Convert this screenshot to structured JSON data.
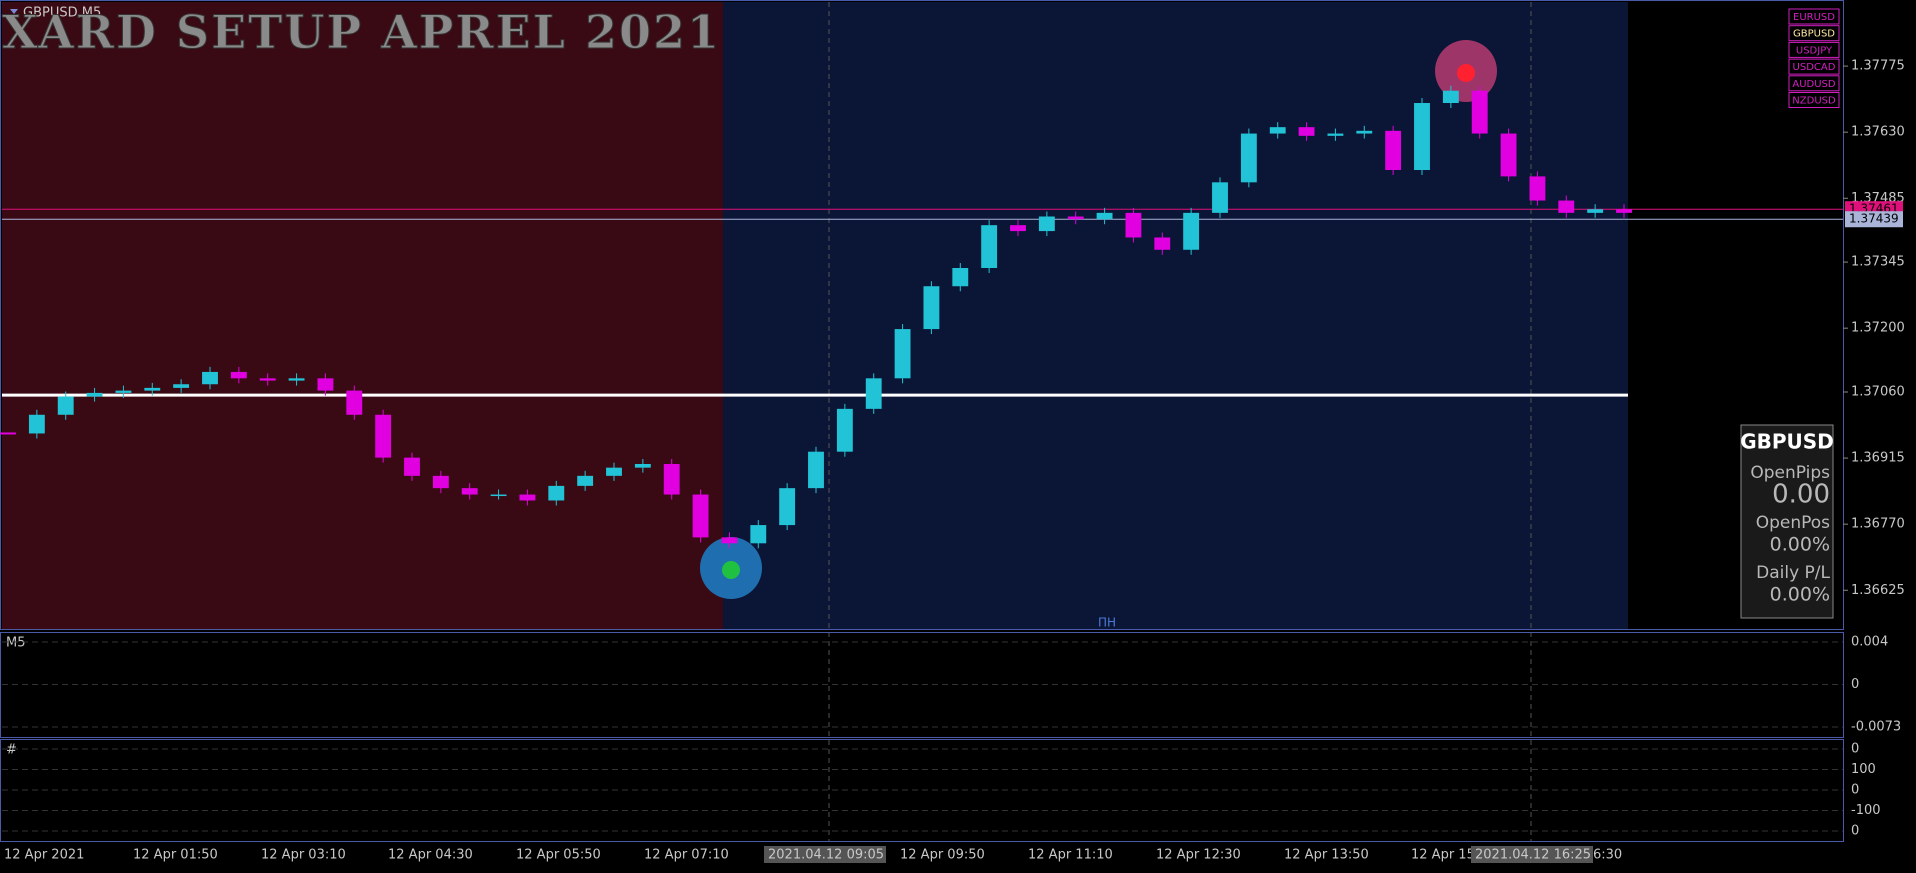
{
  "header": {
    "symbol_timeframe": "GBPUSD,M5"
  },
  "chart_data": {
    "type": "candles",
    "title": "XARD SETUP APREL 2021",
    "up_color": "#22c3d6",
    "down_color": "#e000e0",
    "values": [
      1.36969,
      1.3701,
      1.3705,
      1.37058,
      1.37063,
      1.37069,
      1.37077,
      1.37104,
      1.3709,
      1.37085,
      1.3709,
      1.37063,
      1.3701,
      1.36916,
      1.36876,
      1.36849,
      1.36835,
      1.36835,
      1.36822,
      1.36854,
      1.36876,
      1.36894,
      1.36902,
      1.36835,
      1.36741,
      1.36728,
      1.36768,
      1.36849,
      1.36929,
      1.37023,
      1.3709,
      1.37198,
      1.37292,
      1.37332,
      1.37426,
      1.37413,
      1.37445,
      1.37439,
      1.37453,
      1.37399,
      1.37372,
      1.37453,
      1.3752,
      1.37627,
      1.37641,
      1.37622,
      1.37627,
      1.37633,
      1.37547,
      1.37694,
      1.37721,
      1.37627,
      1.37533,
      1.3748,
      1.37453,
      1.37461,
      1.37453
    ],
    "ylim": [
      1.3654,
      1.3792
    ],
    "yticks": [
      1.37775,
      {
        "value": 1.3763,
        "label": "1.37630"
      },
      1.37485,
      1.37345,
      {
        "value": 1.372,
        "label": "1.37200"
      },
      {
        "value": 1.3706,
        "label": "1.37060"
      },
      1.36915,
      {
        "value": 1.3677,
        "label": "1.36770"
      },
      1.36625
    ],
    "price_labels": [
      {
        "value": 1.37461,
        "color": "#e0107a"
      },
      {
        "value": 1.37439,
        "color": "#aab4d8"
      }
    ],
    "level": 1.37053,
    "marker": "ПН",
    "x_labels": [
      {
        "label": "12 Apr 2021"
      },
      {
        "label": "12 Apr 01:50"
      },
      {
        "label": "12 Apr 03:10"
      },
      {
        "label": "12 Apr 04:30"
      },
      {
        "label": "12 Apr 05:50"
      },
      {
        "label": "12 Apr 07:10"
      },
      {
        "label": "2021.04.12 09:05",
        "highlight": true
      },
      {
        "label": "12 Apr 09:50"
      },
      {
        "label": "12 Apr 11:10"
      },
      {
        "label": "12 Apr 12:30"
      },
      {
        "label": "12 Apr 13:50"
      },
      {
        "label": "12 Apr 15"
      },
      {
        "label": "2021.04.12 16:25",
        "highlight": true
      },
      {
        "label": "6:30"
      }
    ]
  },
  "symbols": [
    "EURUSD",
    "GBPUSD",
    "USDJPY",
    "USDCAD",
    "AUDUSD",
    "NZDUSD"
  ],
  "info_box": {
    "symbol": "GBPUSD",
    "rows": [
      {
        "label": "OpenPips",
        "value": "0.00"
      },
      {
        "label": "OpenPos",
        "value": "0.00%"
      },
      {
        "label": "Daily P/L",
        "value": "0.00%"
      }
    ]
  },
  "indicator_panels": [
    {
      "label": "M5",
      "ticks": [
        0.004,
        0,
        -0.0073
      ]
    },
    {
      "label": "#",
      "ticks": [
        0,
        100,
        0,
        -100,
        0
      ]
    }
  ]
}
